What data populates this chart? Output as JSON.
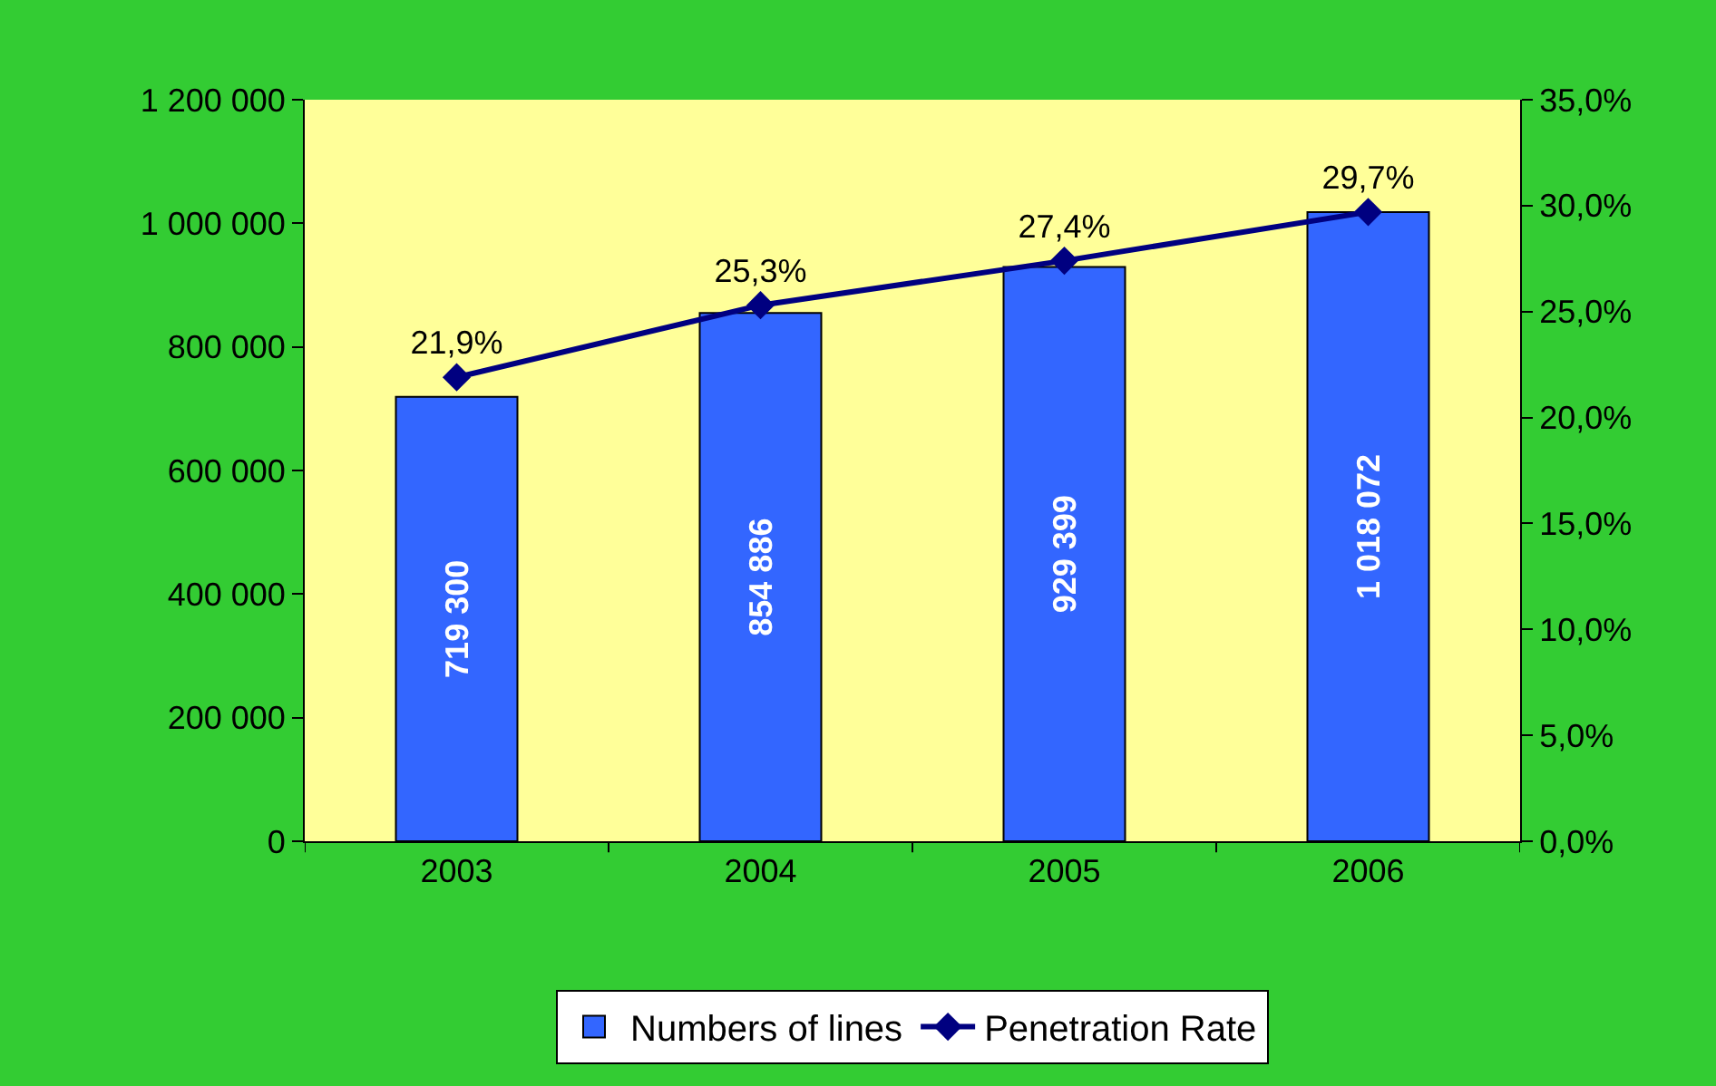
{
  "chart_data": {
    "type": "bar",
    "categories": [
      "2003",
      "2004",
      "2005",
      "2006"
    ],
    "series": [
      {
        "name": "Numbers of lines",
        "color": "#3366ff",
        "values": [
          719300,
          854886,
          929399,
          1018072
        ],
        "value_labels": [
          "719 300",
          "854 886",
          "929 399",
          "1 018 072"
        ]
      },
      {
        "name": "Penetration Rate",
        "type": "line",
        "axis": "y2",
        "color": "#000080",
        "marker": "diamond",
        "values": [
          21.9,
          25.3,
          27.4,
          29.7
        ],
        "value_labels": [
          "21,9%",
          "25,3%",
          "27,4%",
          "29,7%"
        ]
      }
    ],
    "ylim": [
      0,
      1200000
    ],
    "yticks": [
      {
        "value": 0,
        "label": "0"
      },
      {
        "value": 200000,
        "label": "200 000"
      },
      {
        "value": 400000,
        "label": "400 000"
      },
      {
        "value": 600000,
        "label": "600 000"
      },
      {
        "value": 800000,
        "label": "800 000"
      },
      {
        "value": 1000000,
        "label": "1 000 000"
      },
      {
        "value": 1200000,
        "label": "1 200 000"
      }
    ],
    "y2lim": [
      0,
      35
    ],
    "y2ticks": [
      {
        "value": 0,
        "label": "0,0%"
      },
      {
        "value": 5,
        "label": "5,0%"
      },
      {
        "value": 10,
        "label": "10,0%"
      },
      {
        "value": 15,
        "label": "15,0%"
      },
      {
        "value": 20,
        "label": "20,0%"
      },
      {
        "value": 25,
        "label": "25,0%"
      },
      {
        "value": 30,
        "label": "30,0%"
      },
      {
        "value": 35,
        "label": "35,0%"
      }
    ],
    "grid": false,
    "legend": "bottom"
  }
}
